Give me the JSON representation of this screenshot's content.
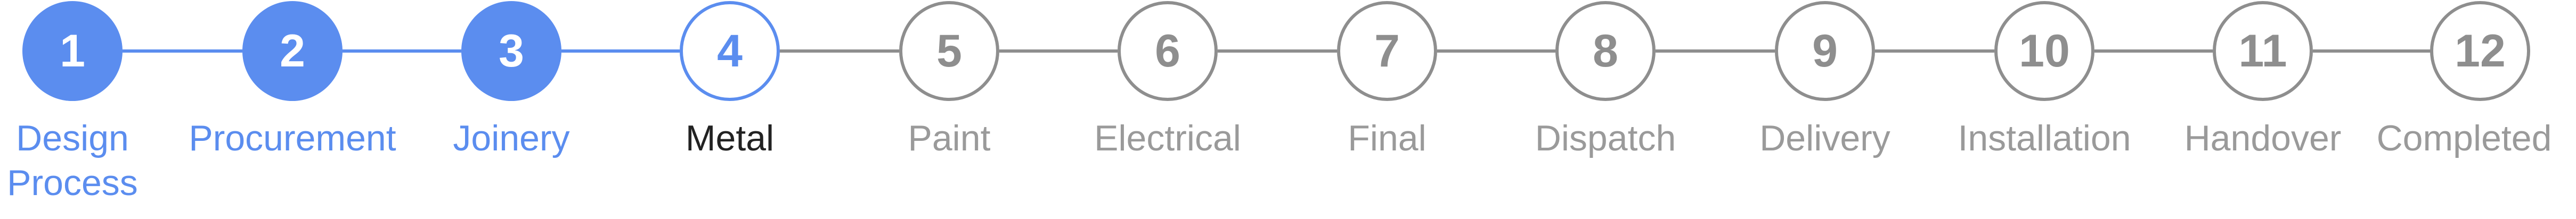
{
  "stepper": {
    "colors": {
      "complete": "#5b8def",
      "current": "#5b8def",
      "upcoming": "#8e8e8e",
      "current_label": "#222222",
      "upcoming_label": "#9a9a9a"
    },
    "steps": [
      {
        "number": "1",
        "label": "Design Process",
        "state": "complete"
      },
      {
        "number": "2",
        "label": "Procurement",
        "state": "complete"
      },
      {
        "number": "3",
        "label": "Joinery",
        "state": "complete"
      },
      {
        "number": "4",
        "label": "Metal",
        "state": "current"
      },
      {
        "number": "5",
        "label": "Paint",
        "state": "upcoming"
      },
      {
        "number": "6",
        "label": "Electrical",
        "state": "upcoming"
      },
      {
        "number": "7",
        "label": "Final",
        "state": "upcoming"
      },
      {
        "number": "8",
        "label": "Dispatch",
        "state": "upcoming"
      },
      {
        "number": "9",
        "label": "Delivery",
        "state": "upcoming"
      },
      {
        "number": "10",
        "label": "Installation",
        "state": "upcoming"
      },
      {
        "number": "11",
        "label": "Handover",
        "state": "upcoming"
      },
      {
        "number": "12",
        "label": "Completed",
        "state": "upcoming"
      }
    ]
  }
}
